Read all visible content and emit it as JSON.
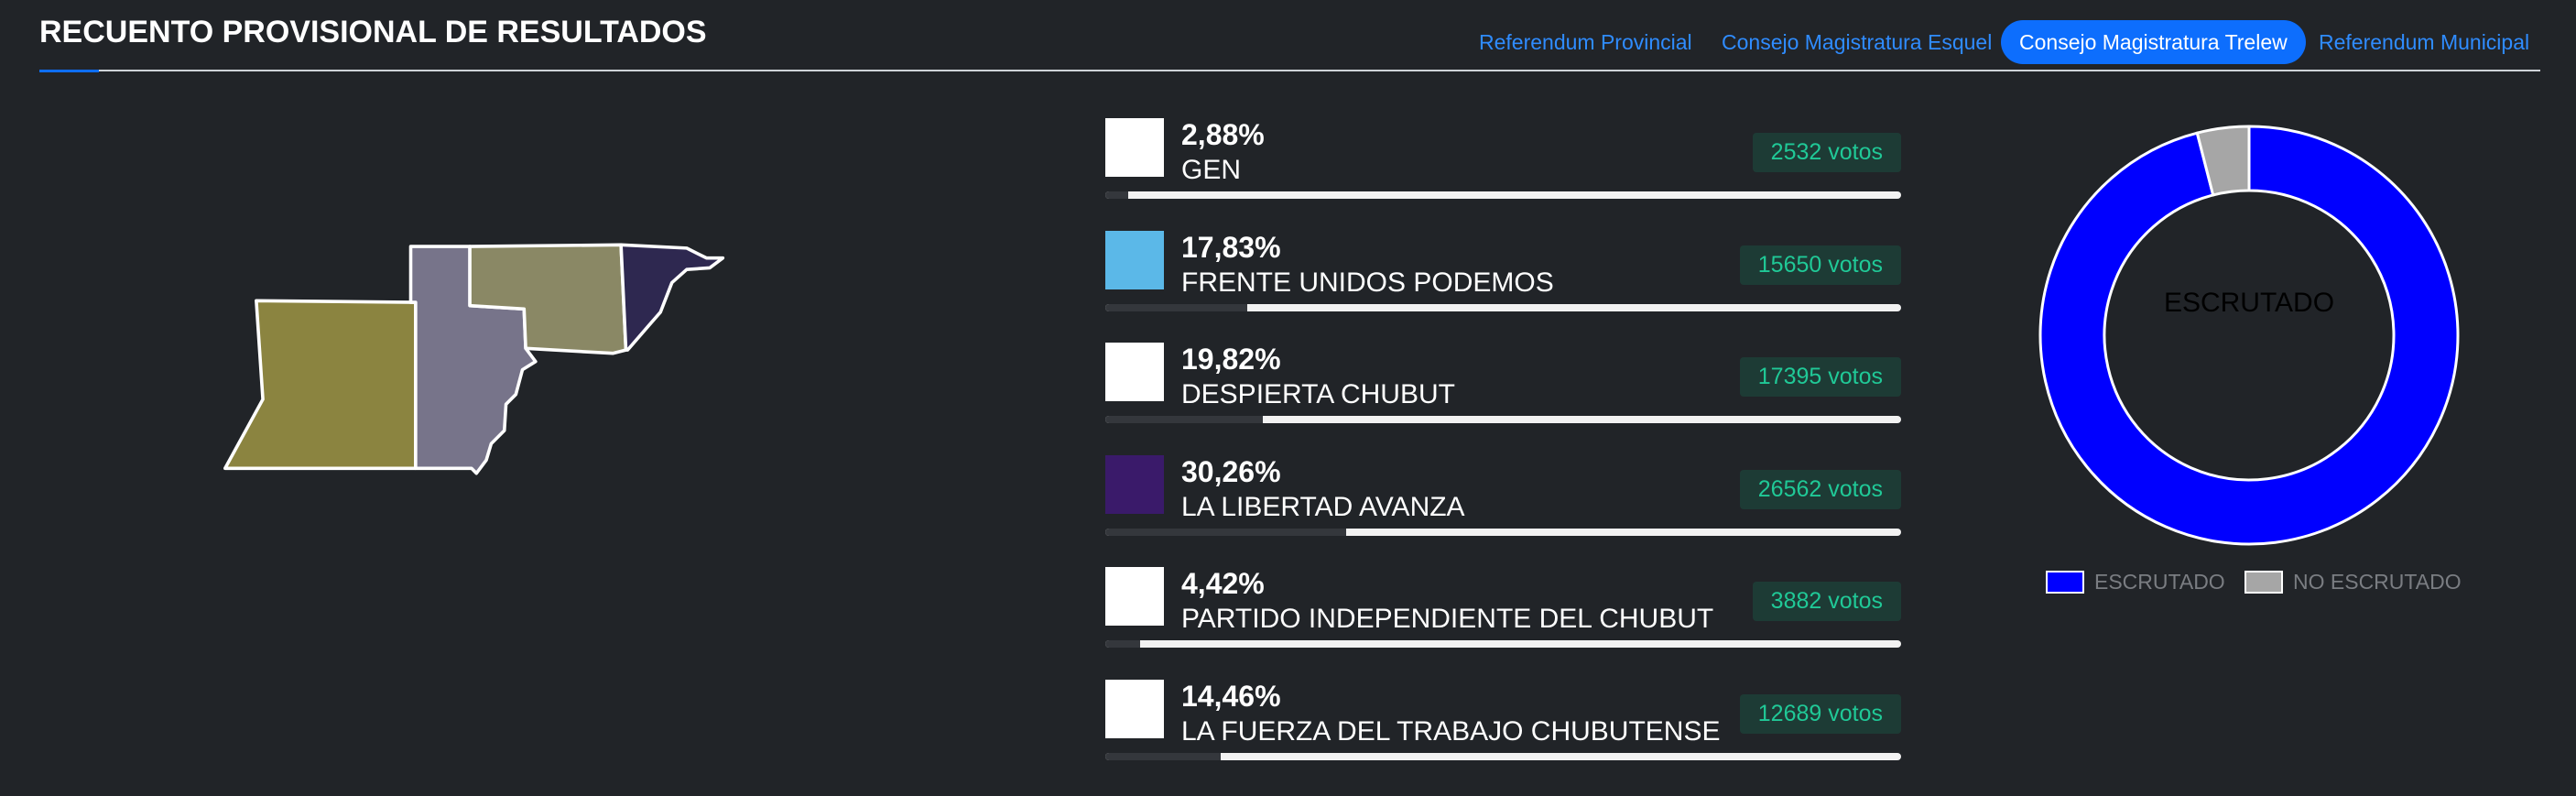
{
  "header": {
    "title": "RECUENTO PROVISIONAL DE RESULTADOS",
    "tabs": [
      "Referendum Provincial",
      "Consejo Magistratura Esquel",
      "Consejo Magistratura Trelew",
      "Referendum Municipal"
    ],
    "active_tab": 2
  },
  "parties": [
    {
      "name": "GEN",
      "percent": {
        "value": 2.88,
        "label": "2,88%"
      },
      "votes": {
        "value": 2532,
        "label": "2532 votos"
      }
    },
    {
      "name": "FRENTE UNIDOS PODEMOS",
      "percent": {
        "value": 17.83,
        "label": "17,83%"
      },
      "votes": {
        "value": 15650,
        "label": "15650 votos"
      }
    },
    {
      "name": "DESPIERTA CHUBUT",
      "percent": {
        "value": 19.82,
        "label": "19,82%"
      },
      "votes": {
        "value": 17395,
        "label": "17395 votos"
      }
    },
    {
      "name": "LA LIBERTAD AVANZA",
      "percent": {
        "value": 30.26,
        "label": "30,26%"
      },
      "votes": {
        "value": 26562,
        "label": "26562 votos"
      }
    },
    {
      "name": "PARTIDO INDEPENDIENTE DEL CHUBUT",
      "percent": {
        "value": 4.42,
        "label": "4,42%"
      },
      "votes": {
        "value": 3882,
        "label": "3882 votos"
      }
    },
    {
      "name": "LA FUERZA DEL TRABAJO CHUBUTENSE",
      "percent": {
        "value": 14.46,
        "label": "14,46%"
      },
      "votes": {
        "value": 12689,
        "label": "12689 votos"
      }
    }
  ],
  "donut": {
    "center_label": "ESCRUTADO",
    "segments": [
      {
        "name": "ESCRUTADO",
        "color": "#0000ff",
        "value": 96
      },
      {
        "name": "NO ESCRUTADO",
        "color": "#a6a6a6",
        "value": 4
      }
    ]
  }
}
